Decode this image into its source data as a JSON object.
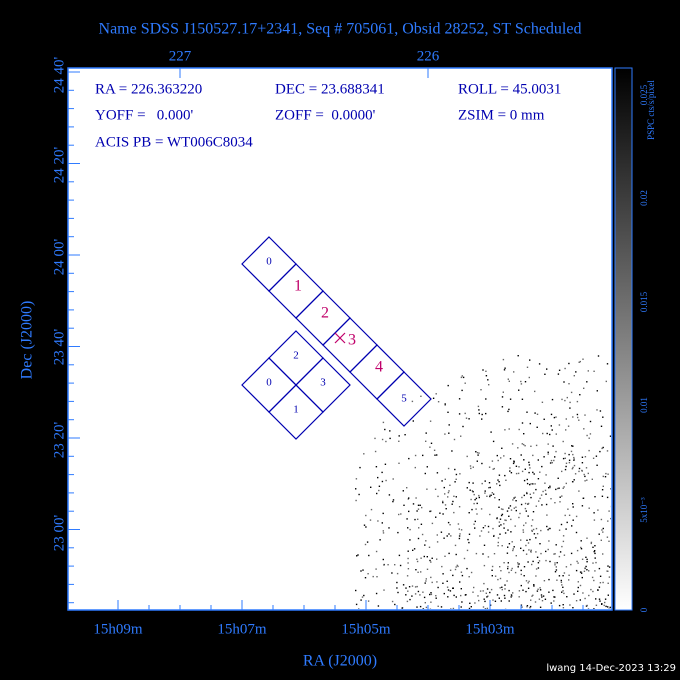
{
  "header": {
    "title": "Name SDSS J150527.17+2341, Seq # 705061, Obsid 28252, ST Scheduled"
  },
  "info": {
    "ra": "RA = 226.363220",
    "dec": "DEC = 23.688341",
    "roll": "ROLL = 45.0031",
    "yoff": "YOFF =   0.000'",
    "zoff": "ZOFF =  0.0000'",
    "zsim": "ZSIM = 0 mm",
    "acis_pb": "ACIS PB = WT006C8034"
  },
  "axes": {
    "top_ticks": [
      "227",
      "226"
    ],
    "left_ticks": [
      "24 40'",
      "24 20'",
      "24 00'",
      "23 40'",
      "23 20'",
      "23 00'"
    ],
    "bottom_ticks": [
      "15h09m",
      "15h07m",
      "15h05m",
      "15h03m"
    ],
    "x_label": "RA (J2000)",
    "y_label": "Dec (J2000)"
  },
  "colorbar": {
    "unit": "PSPC cts/s/pixel",
    "ticks": [
      "0.025",
      "0.02",
      "0.015",
      "0.01",
      "5x10⁻³",
      "0"
    ]
  },
  "s_chips": [
    "0",
    "1",
    "2",
    "3",
    "4",
    "5"
  ],
  "i_chips": [
    "2",
    "0",
    "3",
    "1"
  ],
  "footer": {
    "credit": "lwang 14-Dec-2023 13:29"
  }
}
